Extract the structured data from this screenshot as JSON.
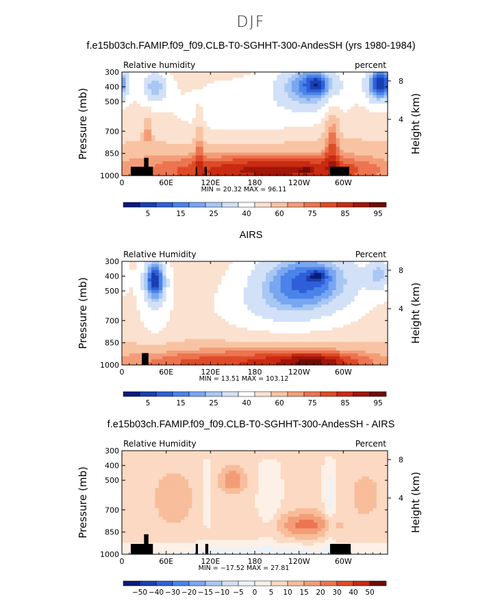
{
  "main_title": "DJF",
  "colors": {
    "levels_abs": [
      "#0a1a7a",
      "#1a3fb0",
      "#2e5fd8",
      "#4a83ea",
      "#79a6f0",
      "#a9c7f4",
      "#d2e1f7",
      "#ffffff",
      "#fbe1cf",
      "#f8c3a3",
      "#f39d78",
      "#ec7450",
      "#df4b27",
      "#c82a12",
      "#a01608",
      "#6e0c05"
    ],
    "levels_diff": [
      "#0a1a7a",
      "#1a3fb0",
      "#2e5fd8",
      "#4a83ea",
      "#79a6f0",
      "#a9c7f4",
      "#d2e1f7",
      "#ecf2fb",
      "#fdf0e6",
      "#fbd9c2",
      "#f8bd9a",
      "#f39d78",
      "#ec7450",
      "#df4b27",
      "#c82a12",
      "#6e0c05"
    ],
    "topography": "#000000"
  },
  "chart_data": [
    {
      "type": "heatmap",
      "title": "f.e15b03ch.FAMIP.f09_f09.CLB-T0-SGHHT-300-AndesSH (yrs 1980-1984)",
      "left_label": "Relative humidity",
      "right_label": "percent",
      "ylabel": "Pressure (mb)",
      "y2label": "Height (km)",
      "xticks": [
        "0",
        "60E",
        "120E",
        "180",
        "120W",
        "60W"
      ],
      "xtick_lon": [
        0,
        60,
        120,
        180,
        240,
        300
      ],
      "xlim": [
        0,
        360
      ],
      "yticks": [
        "300",
        "400",
        "500",
        "700",
        "850",
        "1000"
      ],
      "ytick_p": [
        300,
        400,
        500,
        700,
        850,
        1000
      ],
      "ylim": [
        1000,
        300
      ],
      "y2ticks": [
        "8",
        "4"
      ],
      "y2tick_p": [
        360,
        620
      ],
      "stats": {
        "min_label": "MIN =",
        "min": "20.32",
        "max_label": "MAX =",
        "max": "96.11"
      },
      "colorbar_labels": [
        "5",
        "15",
        "25",
        "40",
        "60",
        "75",
        "85",
        "95"
      ],
      "colorbar_kind": "abs",
      "background_value": 55,
      "blobs": [
        {
          "lon": 45,
          "p": 400,
          "rlon": 18,
          "rp": 110,
          "v": -28
        },
        {
          "lon": -5,
          "p": 370,
          "rlon": 18,
          "rp": 120,
          "v": -25
        },
        {
          "lon": 255,
          "p": 390,
          "rlon": 45,
          "rp": 170,
          "v": -35
        },
        {
          "lon": 265,
          "p": 380,
          "rlon": 14,
          "rp": 60,
          "v": -15
        },
        {
          "lon": 345,
          "p": 390,
          "rlon": 18,
          "rp": 130,
          "v": -28
        },
        {
          "lon": 160,
          "p": 600,
          "rlon": 110,
          "rp": 300,
          "v": -10
        },
        {
          "lon": 35,
          "p": 700,
          "rlon": 6,
          "rp": 110,
          "v": 18
        },
        {
          "lon": 285,
          "p": 720,
          "rlon": 10,
          "rp": 220,
          "v": 20
        },
        {
          "lon": 105,
          "p": 760,
          "rlon": 6,
          "rp": 180,
          "v": 15
        },
        {
          "lon": 180,
          "p": 980,
          "rlon": 230,
          "rp": 200,
          "v": 30
        },
        {
          "lon": 220,
          "p": 950,
          "rlon": 120,
          "rp": 80,
          "v": 10
        },
        {
          "lon": 250,
          "p": 965,
          "rlon": 8,
          "rp": 18,
          "v": 12
        }
      ],
      "topography": [
        {
          "lon0": 12,
          "lon1": 42,
          "p": 940
        },
        {
          "lon0": 30,
          "lon1": 36,
          "p": 880
        },
        {
          "lon0": 100,
          "lon1": 102,
          "p": 940
        },
        {
          "lon0": 112,
          "lon1": 115,
          "p": 940
        },
        {
          "lon0": 282,
          "lon1": 308,
          "p": 940
        }
      ]
    },
    {
      "type": "heatmap",
      "title": "AIRS",
      "left_label": "Relative Humidity",
      "right_label": "Percent",
      "ylabel": "Pressure (mb)",
      "y2label": "Height (km)",
      "xticks": [
        "0",
        "60E",
        "120E",
        "180",
        "120W",
        "60W"
      ],
      "xtick_lon": [
        0,
        60,
        120,
        180,
        240,
        300
      ],
      "xlim": [
        0,
        360
      ],
      "yticks": [
        "300",
        "400",
        "500",
        "700",
        "850",
        "1000"
      ],
      "ytick_p": [
        300,
        400,
        500,
        700,
        850,
        1000
      ],
      "ylim": [
        1000,
        300
      ],
      "y2ticks": [
        "8",
        "4"
      ],
      "y2tick_p": [
        360,
        620
      ],
      "stats": {
        "min_label": "MIN =",
        "min": "13.51",
        "max_label": "MAX =",
        "max": "103.12"
      },
      "colorbar_labels": [
        "5",
        "15",
        "25",
        "40",
        "60",
        "75",
        "85",
        "95"
      ],
      "colorbar_kind": "abs",
      "background_value": 55,
      "blobs": [
        {
          "lon": 45,
          "p": 420,
          "rlon": 15,
          "rp": 140,
          "v": -40
        },
        {
          "lon": 45,
          "p": 560,
          "rlon": 22,
          "rp": 260,
          "v": -12
        },
        {
          "lon": 250,
          "p": 420,
          "rlon": 75,
          "rp": 220,
          "v": -40
        },
        {
          "lon": 265,
          "p": 400,
          "rlon": 12,
          "rp": 40,
          "v": -15
        },
        {
          "lon": 210,
          "p": 620,
          "rlon": 80,
          "rp": 160,
          "v": -12
        },
        {
          "lon": 348,
          "p": 390,
          "rlon": 15,
          "rp": 110,
          "v": -22
        },
        {
          "lon": 180,
          "p": 985,
          "rlon": 240,
          "rp": 120,
          "v": 30
        },
        {
          "lon": 260,
          "p": 980,
          "rlon": 50,
          "rp": 70,
          "v": 15
        }
      ],
      "topography": [
        {
          "lon0": 27,
          "lon1": 36,
          "p": 920
        }
      ]
    },
    {
      "type": "heatmap",
      "title": "f.e15b03ch.FAMIP.f09_f09.CLB-T0-SGHHT-300-AndesSH - AIRS",
      "left_label": "Relative Humidity",
      "right_label": "Percent",
      "ylabel": "Pressure (mb)",
      "y2label": "Height (km)",
      "xticks": [
        "0",
        "60E",
        "120E",
        "180",
        "120W",
        "60W"
      ],
      "xtick_lon": [
        0,
        60,
        120,
        180,
        240,
        300
      ],
      "xlim": [
        0,
        360
      ],
      "yticks": [
        "300",
        "400",
        "500",
        "700",
        "850",
        "1000"
      ],
      "ytick_p": [
        300,
        400,
        500,
        700,
        850,
        1000
      ],
      "ylim": [
        1000,
        300
      ],
      "y2ticks": [
        "8",
        "4"
      ],
      "y2tick_p": [
        360,
        620
      ],
      "stats": {
        "min_label": "MIN =",
        "min": "−17.52",
        "max_label": "MAX =",
        "max": "27.81"
      },
      "colorbar_labels": [
        "−50",
        "−40",
        "−30",
        "−20",
        "−15",
        "−10",
        "−5",
        "0",
        "5",
        "10",
        "15",
        "20",
        "30",
        "40",
        "50"
      ],
      "colorbar_kind": "diff",
      "background_value": 6,
      "blobs": [
        {
          "lon": 150,
          "p": 500,
          "rlon": 18,
          "rp": 90,
          "v": 14
        },
        {
          "lon": 250,
          "p": 800,
          "rlon": 40,
          "rp": 90,
          "v": 16
        },
        {
          "lon": 70,
          "p": 620,
          "rlon": 30,
          "rp": 200,
          "v": 8
        },
        {
          "lon": 330,
          "p": 600,
          "rlon": 25,
          "rp": 200,
          "v": 6
        },
        {
          "lon": 115,
          "p": 560,
          "rlon": 6,
          "rp": 220,
          "v": -6
        },
        {
          "lon": 200,
          "p": 620,
          "rlon": 14,
          "rp": 260,
          "v": -6
        },
        {
          "lon": 282,
          "p": 640,
          "rlon": 8,
          "rp": 320,
          "v": -8
        },
        {
          "lon": 180,
          "p": 990,
          "rlon": 220,
          "rp": 60,
          "v": -8
        },
        {
          "lon": 180,
          "p": 320,
          "rlon": 200,
          "rp": 40,
          "v": 3
        }
      ],
      "topography": [
        {
          "lon0": 12,
          "lon1": 42,
          "p": 930
        },
        {
          "lon0": 30,
          "lon1": 36,
          "p": 865
        },
        {
          "lon0": 100,
          "lon1": 103,
          "p": 930
        },
        {
          "lon0": 113,
          "lon1": 117,
          "p": 930
        },
        {
          "lon0": 282,
          "lon1": 310,
          "p": 930
        }
      ]
    }
  ]
}
